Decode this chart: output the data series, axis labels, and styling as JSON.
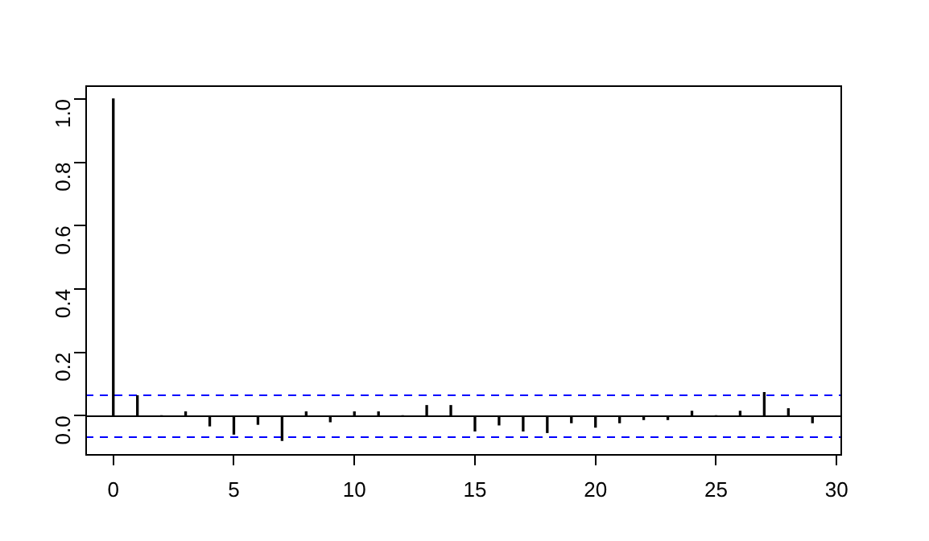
{
  "chart_data": {
    "type": "bar",
    "x": [
      0,
      1,
      2,
      3,
      4,
      5,
      6,
      7,
      8,
      9,
      10,
      11,
      12,
      13,
      14,
      15,
      16,
      17,
      18,
      19,
      20,
      21,
      22,
      23,
      24,
      25,
      26,
      27,
      28,
      29
    ],
    "values": [
      1.0,
      0.063,
      0.0,
      0.012,
      -0.032,
      -0.058,
      -0.027,
      -0.078,
      0.012,
      -0.019,
      0.012,
      0.012,
      0.0,
      0.032,
      0.032,
      -0.048,
      -0.029,
      -0.048,
      -0.053,
      -0.022,
      -0.036,
      -0.022,
      -0.012,
      -0.012,
      0.014,
      0.0,
      0.014,
      0.073,
      0.022,
      -0.022
    ],
    "color": "#000000",
    "xlim": [
      -1.16,
      30.16
    ],
    "xticks": [
      0,
      5,
      10,
      15,
      20,
      25,
      30
    ],
    "ylim": [
      -0.121,
      1.043
    ],
    "yticks": [
      {
        "value": 0,
        "label": "0.0"
      },
      {
        "value": 0.2,
        "label": "0.2"
      },
      {
        "value": 0.4,
        "label": "0.4"
      },
      {
        "value": 0.6,
        "label": "0.6"
      },
      {
        "value": 0.8,
        "label": "0.8"
      },
      {
        "value": 1,
        "label": "1.0"
      }
    ],
    "ref_lines": [
      {
        "axis": "y",
        "value": 0,
        "color": "#000000",
        "line_style": "solid"
      },
      {
        "axis": "y",
        "value": 0.065,
        "color": "#0000ff",
        "line_style": "dashed"
      },
      {
        "axis": "y",
        "value": -0.065,
        "color": "#0000ff",
        "line_style": "dashed"
      }
    ],
    "legend": false,
    "grid": false
  }
}
